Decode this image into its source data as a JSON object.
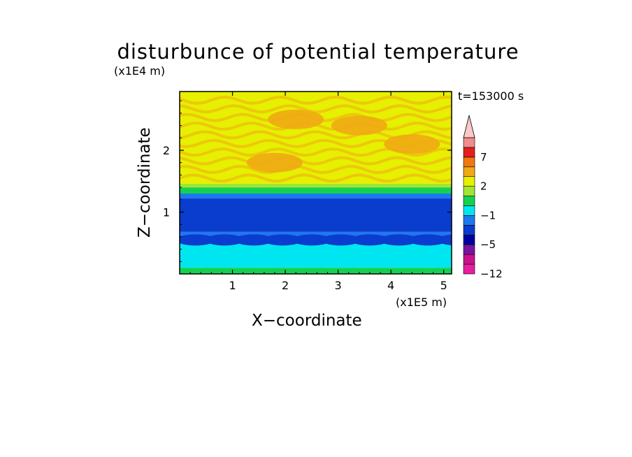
{
  "chart_data": {
    "type": "heatmap",
    "title": "disturbunce of potential temperature",
    "xlabel": "X−coordinate",
    "ylabel": "Z−coordinate",
    "x_unit": "(x1E5 m)",
    "y_unit": "(x1E4 m)",
    "annotation": "t=153000 s",
    "xlim": [
      0,
      5.15
    ],
    "ylim": [
      0,
      2.95
    ],
    "x_ticks": [
      "1",
      "2",
      "3",
      "4",
      "5"
    ],
    "y_ticks": [
      "1",
      "2"
    ],
    "colorbar": {
      "tick_labels": [
        "7",
        "2",
        "−1",
        "−5",
        "−12"
      ],
      "levels": [
        -12,
        -9,
        -7,
        -5,
        -3,
        -2,
        -1,
        0,
        1,
        2,
        3,
        5,
        7,
        9
      ],
      "colors": [
        "#e61ea0",
        "#c8148c",
        "#7814a0",
        "#0000a0",
        "#0a3ccd",
        "#1e78f0",
        "#00e6f0",
        "#14d250",
        "#a0e632",
        "#e6f000",
        "#f0aa14",
        "#f07814",
        "#e61e1e",
        "#f08c8c",
        "#ffc8c8"
      ],
      "extend": "max"
    },
    "field_bands": [
      {
        "z_from": 0.0,
        "z_to": 0.1,
        "value": -1
      },
      {
        "z_from": 0.1,
        "z_to": 0.55,
        "value": -2
      },
      {
        "z_from": 0.55,
        "z_to": 0.68,
        "value": -3
      },
      {
        "z_from": 0.68,
        "z_to": 1.22,
        "value": -5
      },
      {
        "z_from": 1.22,
        "z_to": 1.3,
        "value": -3
      },
      {
        "z_from": 1.3,
        "z_to": 1.4,
        "value": -1
      },
      {
        "z_from": 1.4,
        "z_to": 1.46,
        "value": 0
      },
      {
        "z_from": 1.46,
        "z_to": 2.95,
        "value": 1
      }
    ],
    "warm_patches": [
      {
        "x": 2.2,
        "z": 2.5,
        "value": 2
      },
      {
        "x": 3.4,
        "z": 2.4,
        "value": 2
      },
      {
        "x": 4.4,
        "z": 2.1,
        "value": 2
      },
      {
        "x": 1.8,
        "z": 1.8,
        "value": 2
      }
    ]
  }
}
